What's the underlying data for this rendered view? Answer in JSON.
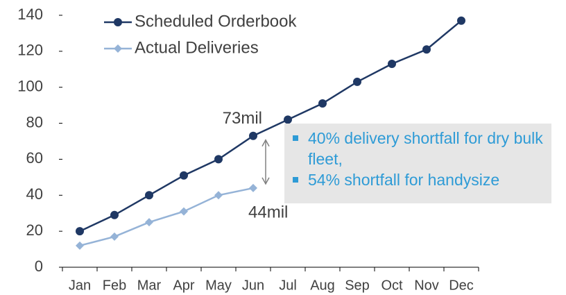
{
  "chart_data": {
    "type": "line",
    "categories": [
      "Jan",
      "Feb",
      "Mar",
      "Apr",
      "May",
      "Jun",
      "Jul",
      "Aug",
      "Sep",
      "Oct",
      "Nov",
      "Dec"
    ],
    "series": [
      {
        "name": "Scheduled Orderbook",
        "color": "#1f3864",
        "marker": "circle",
        "values": [
          20,
          29,
          40,
          51,
          60,
          73,
          82,
          91,
          103,
          113,
          121,
          137
        ]
      },
      {
        "name": "Actual Deliveries",
        "color": "#95b3d7",
        "marker": "diamond",
        "values": [
          12,
          17,
          25,
          31,
          40,
          44,
          null,
          null,
          null,
          null,
          null,
          null
        ]
      }
    ],
    "ylim": [
      0,
      140
    ],
    "yticks": [
      0,
      20,
      40,
      60,
      80,
      100,
      120,
      140
    ],
    "legend": "upper left",
    "annotations": [
      "73mil",
      "44mil"
    ],
    "notes": [
      "40% delivery shortfall for dry bulk fleet,",
      "54% shortfall for handysize"
    ]
  }
}
